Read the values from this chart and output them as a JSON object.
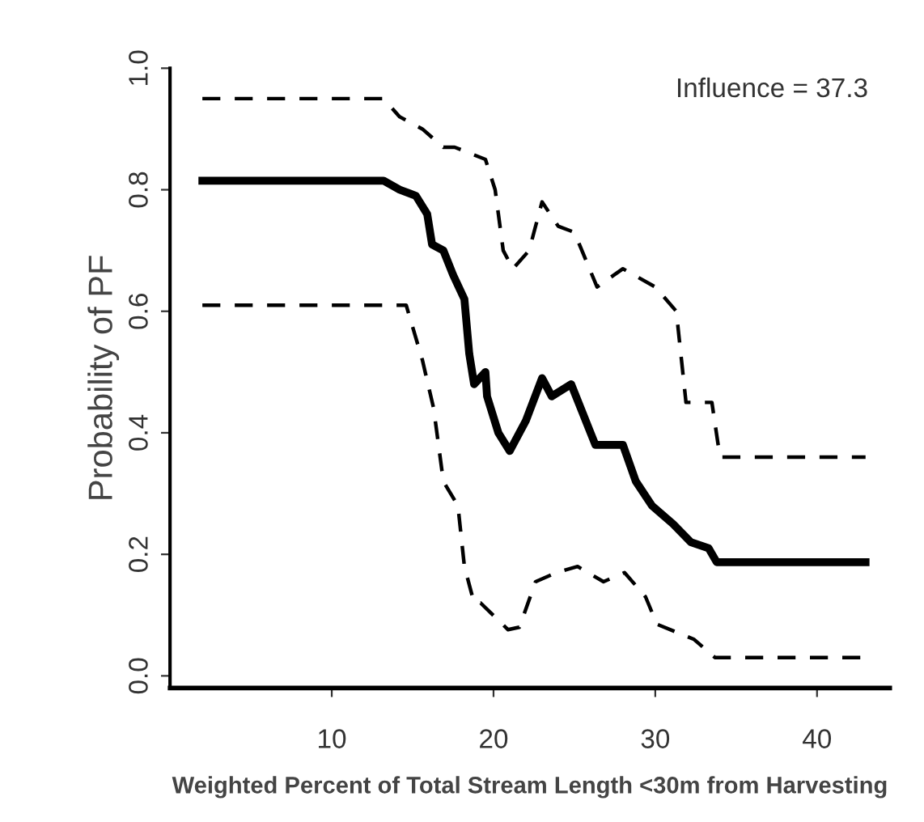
{
  "chart_data": {
    "type": "line",
    "xlabel": "Weighted Percent of Total Stream Length <30m from Harvesting",
    "ylabel": "Probability of PF",
    "annotations": [
      "Influence = 37.3"
    ],
    "xlim": [
      0,
      44.5
    ],
    "xticks": [
      10,
      20,
      30,
      40
    ],
    "ylim": [
      -0.02,
      1.0
    ],
    "yticks": [
      {
        "value": 0,
        "label": "0.0"
      },
      0.2,
      0.4,
      0.6,
      0.8,
      {
        "value": 1,
        "label": "1.0"
      }
    ],
    "grid": false,
    "legend": false,
    "marker": "none",
    "series": [
      {
        "color": "#000000",
        "line_style": "dashed",
        "x": [
          2,
          13.2,
          14.2,
          15.6,
          16.9,
          17.6,
          19.5,
          20.1,
          20.6,
          21.2,
          22.2,
          23,
          24,
          25,
          26.4,
          28,
          30,
          31.3,
          31.9,
          33.5,
          34,
          43
        ],
        "values": [
          0.95,
          0.95,
          0.92,
          0.9,
          0.87,
          0.87,
          0.85,
          0.8,
          0.7,
          0.67,
          0.7,
          0.78,
          0.74,
          0.73,
          0.64,
          0.67,
          0.64,
          0.6,
          0.45,
          0.45,
          0.36,
          0.36
        ]
      },
      {
        "color": "#000000",
        "line_style": "solid",
        "x": [
          2,
          13.2,
          14.2,
          15.2,
          15.9,
          16.2,
          16.9,
          17.5,
          18.2,
          18.5,
          18.8,
          19.5,
          19.6,
          20.3,
          21,
          22,
          23,
          23.6,
          24.8,
          26,
          26.3,
          28,
          28.8,
          29.8,
          31.1,
          32.2,
          33.3,
          33.8,
          43
        ],
        "values": [
          0.815,
          0.815,
          0.8,
          0.79,
          0.76,
          0.71,
          0.7,
          0.66,
          0.62,
          0.53,
          0.48,
          0.5,
          0.46,
          0.4,
          0.37,
          0.42,
          0.49,
          0.46,
          0.48,
          0.4,
          0.38,
          0.38,
          0.32,
          0.28,
          0.25,
          0.22,
          0.21,
          0.187,
          0.187
        ]
      },
      {
        "color": "#000000",
        "line_style": "dashed",
        "x": [
          2,
          14.6,
          15.6,
          16.3,
          16.9,
          17.8,
          18.2,
          18.8,
          19.2,
          20.9,
          21.6,
          22.6,
          23.9,
          25.2,
          26.8,
          28.1,
          29.4,
          30.1,
          32.4,
          33.7,
          43
        ],
        "values": [
          0.61,
          0.61,
          0.52,
          0.44,
          0.32,
          0.28,
          0.18,
          0.12,
          0.12,
          0.076,
          0.08,
          0.155,
          0.17,
          0.18,
          0.155,
          0.17,
          0.13,
          0.085,
          0.06,
          0.03,
          0.03
        ]
      }
    ]
  }
}
